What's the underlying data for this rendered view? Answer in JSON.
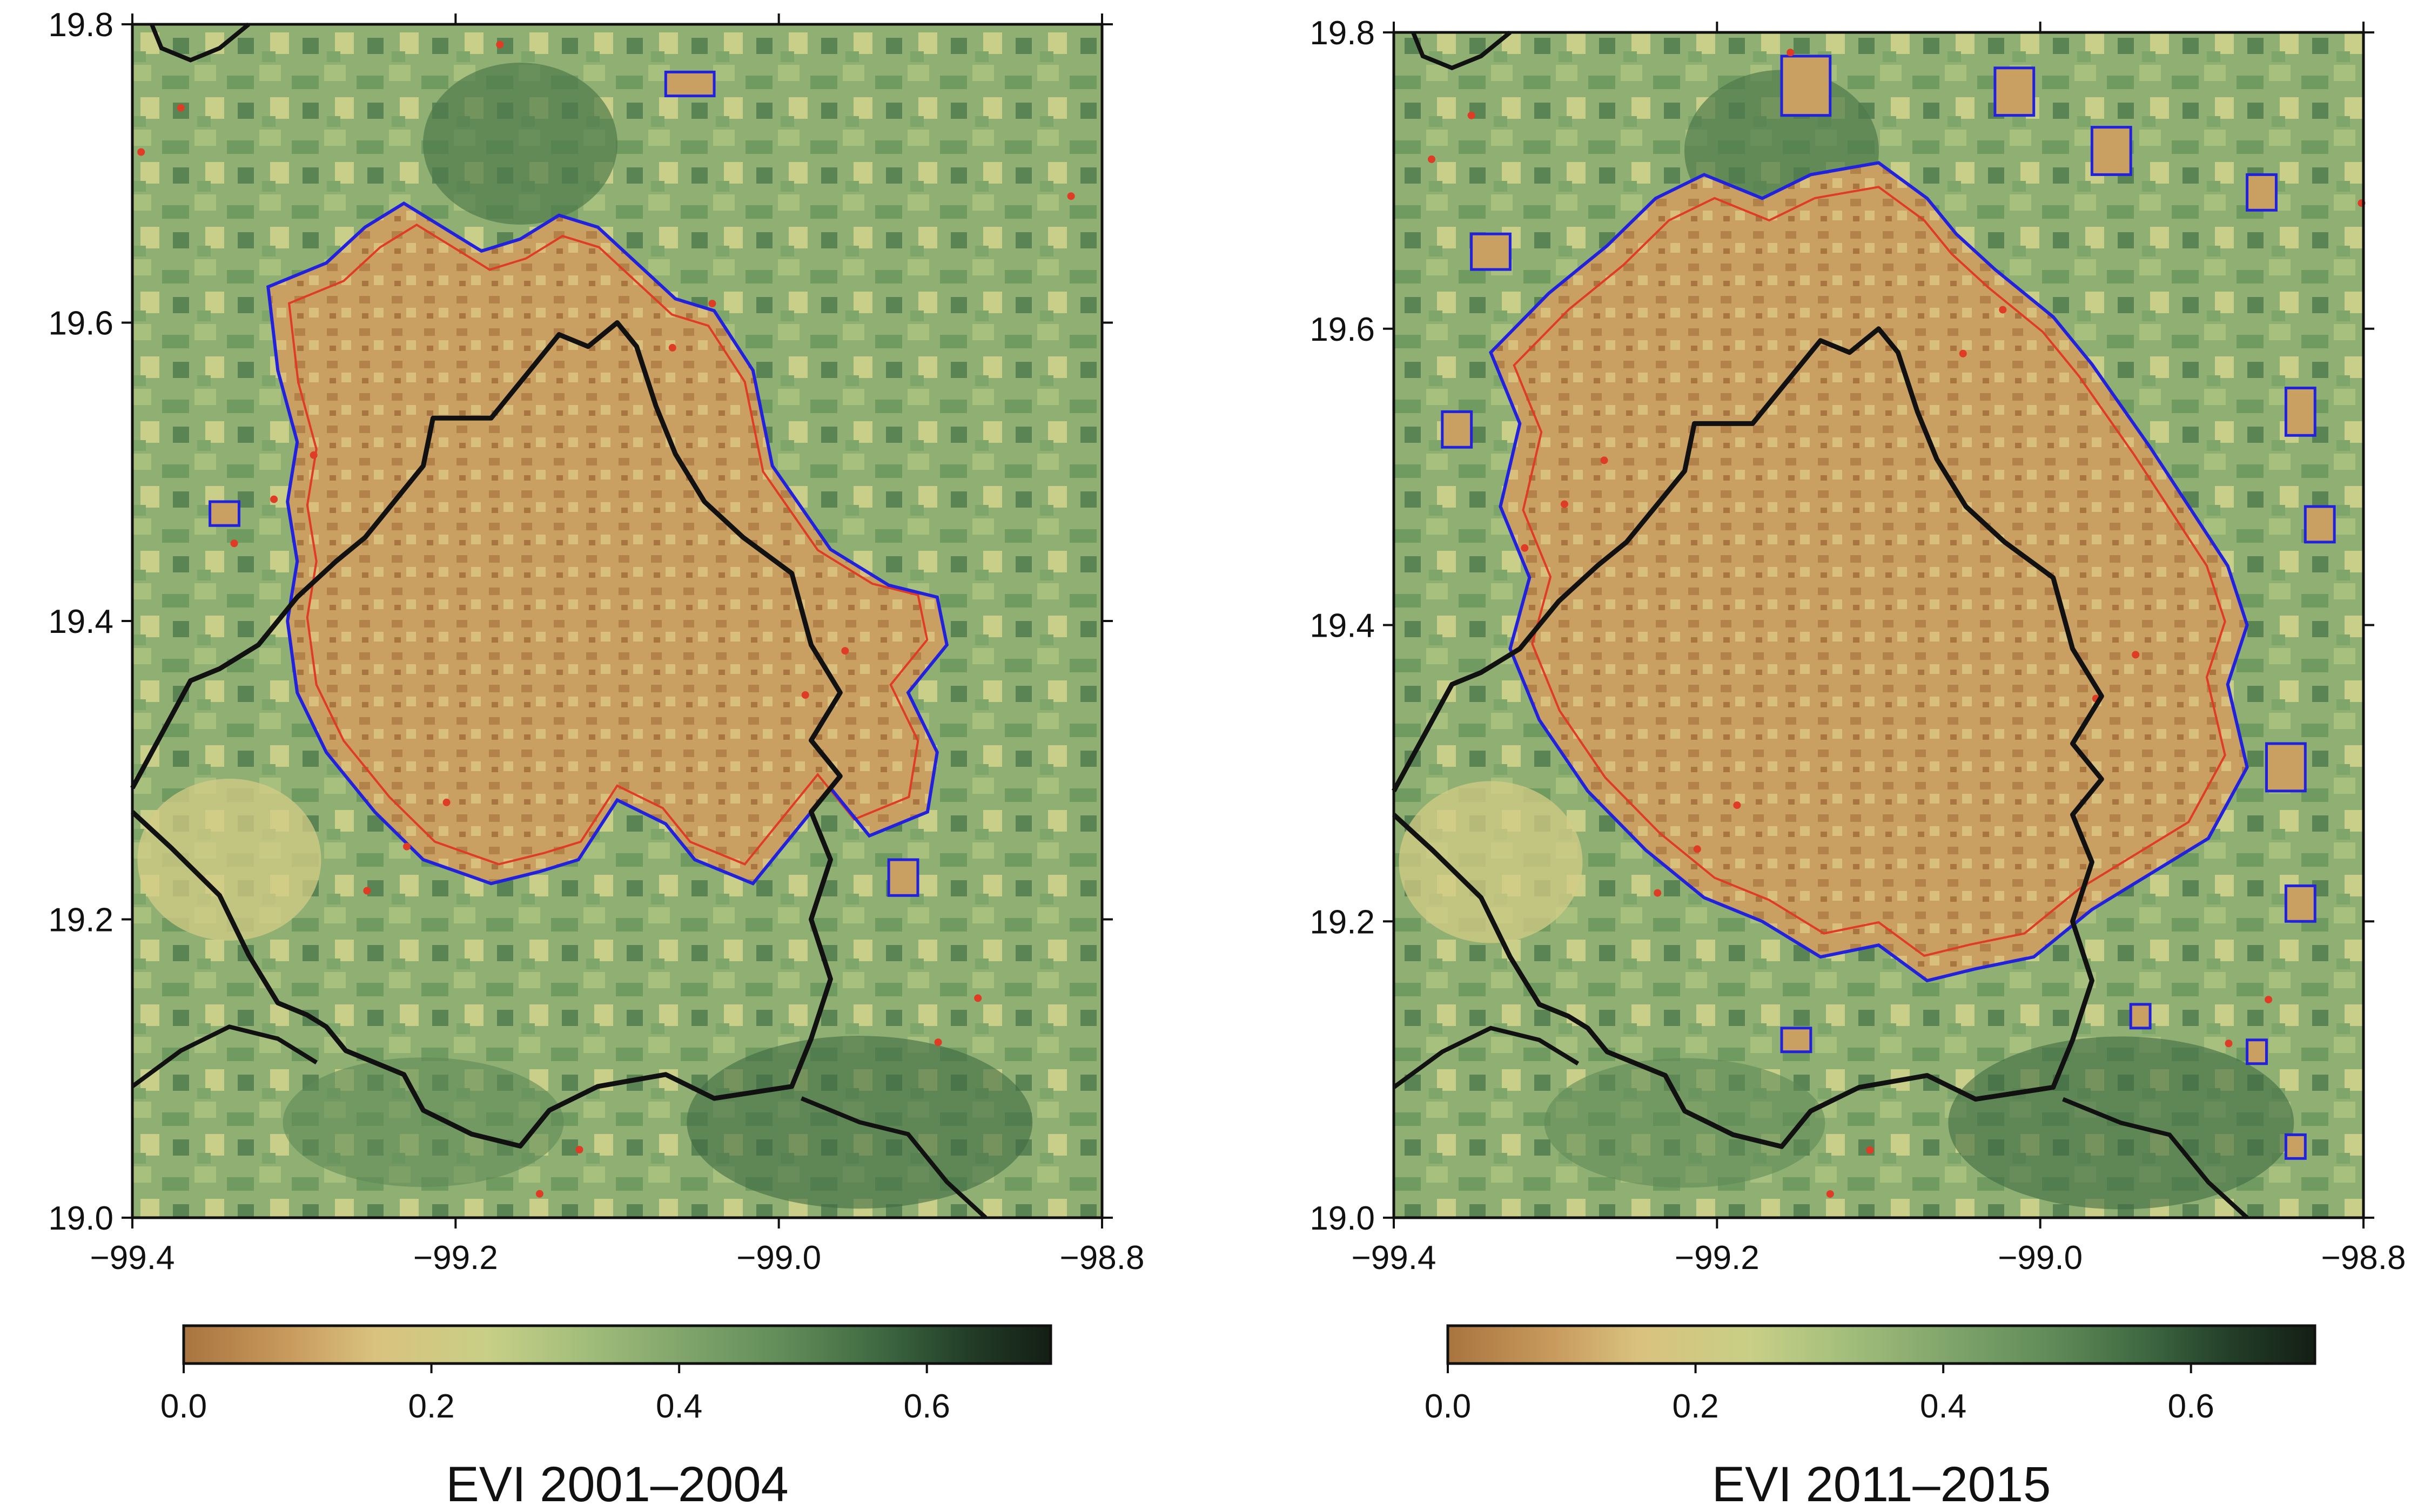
{
  "colors": {
    "urban_outline": "#2222dd",
    "evi_contour": "#e03b24",
    "boundary": "#111111",
    "colorscale": [
      "#a8743f",
      "#c89a5c",
      "#d9c27e",
      "#c8cf86",
      "#a6c07c",
      "#7fa46b",
      "#5f8a57",
      "#3f6a42",
      "#233f29",
      "#141e14"
    ]
  },
  "panels": [
    {
      "title": "EVI 2001–2004",
      "x_ticks": [
        "−99.4",
        "−99.2",
        "−99.0",
        "−98.8"
      ],
      "y_ticks": [
        "19.0",
        "19.2",
        "19.4",
        "19.6",
        "19.8"
      ],
      "colorbar_ticks": [
        "0.0",
        "0.2",
        "0.4",
        "0.6"
      ]
    },
    {
      "title": "EVI 2011–2015",
      "x_ticks": [
        "−99.4",
        "−99.2",
        "−99.0",
        "−98.8"
      ],
      "y_ticks": [
        "19.0",
        "19.2",
        "19.4",
        "19.6",
        "19.8"
      ],
      "colorbar_ticks": [
        "0.0",
        "0.2",
        "0.4",
        "0.6"
      ]
    }
  ],
  "map_data": {
    "lon_range": [
      -99.4,
      -98.8
    ],
    "lat_range": [
      19.0,
      19.8
    ],
    "colorbar_range": [
      0.0,
      0.7
    ]
  }
}
